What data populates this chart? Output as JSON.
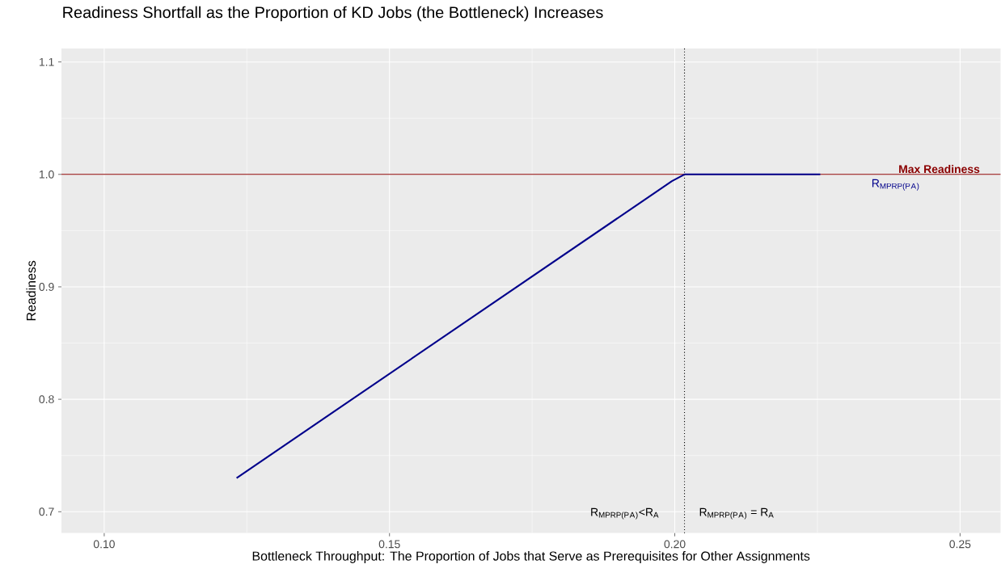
{
  "chart_data": {
    "type": "line",
    "title": "Readiness Shortfall as the Proportion of KD Jobs (the Bottleneck) Increases",
    "xlabel": "Bottleneck Throughput: The Proportion of Jobs that Serve as Prerequisites for Other Assignments",
    "ylabel": "Readiness",
    "series": [
      {
        "name": "R$_{MPRP(P}$$_{A}$$_{)}$",
        "color": "#00008b",
        "x": [
          0.1232,
          0.1995,
          0.2017,
          0.2255
        ],
        "values": [
          0.73,
          0.994,
          1.0,
          1.0
        ]
      }
    ],
    "xlim": [
      0.0925,
      0.2571
    ],
    "ylim": [
      0.681,
      1.112
    ],
    "xticks": [
      {
        "value": 0.1,
        "label": "0.10"
      },
      0.15,
      {
        "value": 0.2,
        "label": "0.20"
      },
      0.25
    ],
    "yticks": [
      0.7,
      0.8,
      0.9,
      {
        "value": 1.0,
        "label": "1.0"
      },
      1.1
    ],
    "ref_lines": [
      {
        "axis": "y",
        "value": 1.0,
        "label": "Max Readiness",
        "color": "#8b0000",
        "line_style": "solid"
      },
      {
        "axis": "x",
        "value": 0.2017,
        "color": "#000000",
        "line_style": "dotted"
      }
    ],
    "annotations": [
      "R$_{MPRP(P}$$_{A}$$_{)}$<R$_{A}$",
      "R$_{MPRP(P}$$_{A}$$_{)}$ = R$_{A}$"
    ],
    "grid": true,
    "legend": false,
    "marker": "none",
    "line_style": "solid"
  }
}
